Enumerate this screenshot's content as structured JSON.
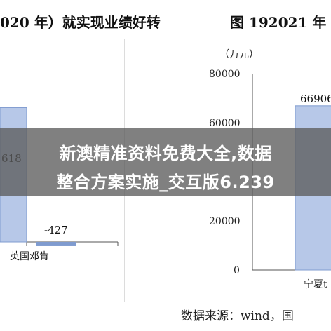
{
  "header": {
    "left_title": "020 年）就实现业绩好转",
    "right_title": "图 192021 年"
  },
  "overlay": {
    "line1": "新澳精准资料免费大全,数据",
    "line2": "整合方案实施_交互版6.239"
  },
  "source_text": "数据来源：wind，国",
  "colors": {
    "bar_fill": "#b7c8e8",
    "bar_edge": "#7f9bcf",
    "negative_bar": "#7f9bcf"
  },
  "chart_data": [
    {
      "type": "bar",
      "categories": [
        "",
        "英国邓肯"
      ],
      "values": [
        618,
        -427
      ],
      "data_labels": [
        "618",
        "-427"
      ]
    },
    {
      "type": "bar",
      "unit_label": "（万元）",
      "yticks": [
        "80000",
        "60000",
        "20000",
        "0"
      ],
      "ylim": [
        0,
        80000
      ],
      "categories": [
        "宁夏t"
      ],
      "values": [
        66906
      ],
      "data_labels": [
        "66906"
      ]
    }
  ]
}
